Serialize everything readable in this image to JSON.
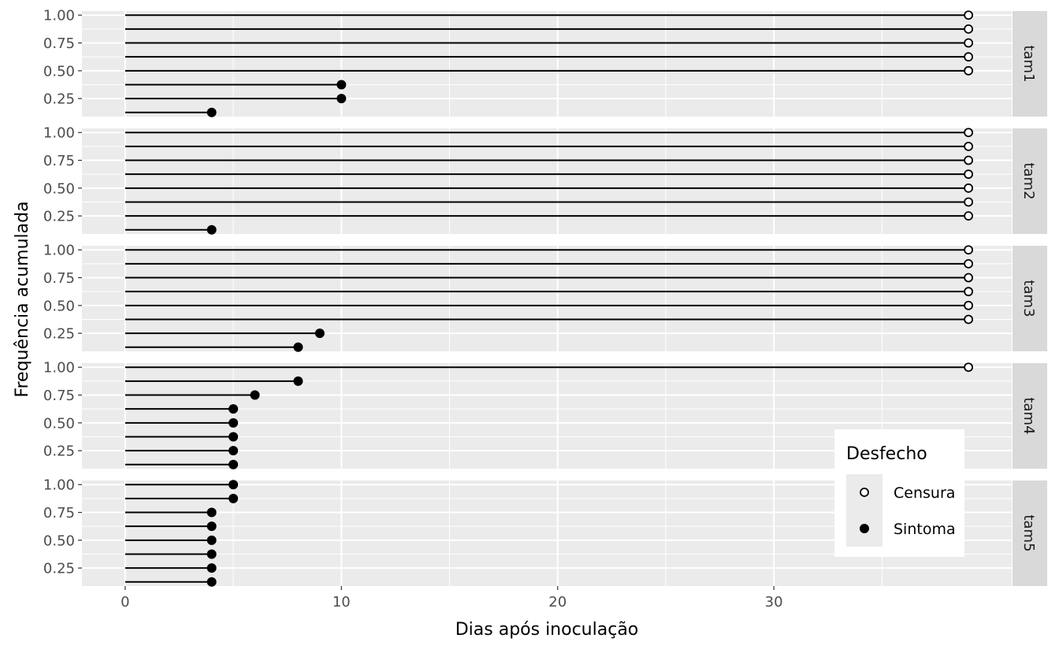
{
  "chart_data": {
    "type": "lollipop",
    "xlabel": "Dias após inoculação",
    "ylabel": "Frequência acumulada",
    "xlim": [
      -2,
      41
    ],
    "x_ticks": [
      0,
      10,
      20,
      30
    ],
    "y_ticks": [
      0.25,
      0.5,
      0.75,
      1.0
    ],
    "y_tick_labels": [
      "0.25",
      "0.50",
      "0.75",
      "1.00"
    ],
    "ylim": [
      0.088,
      1.037
    ],
    "facets": [
      {
        "label": "tam1",
        "points": [
          {
            "y": 1.0,
            "x": 39,
            "outcome": "Censura"
          },
          {
            "y": 0.875,
            "x": 39,
            "outcome": "Censura"
          },
          {
            "y": 0.75,
            "x": 39,
            "outcome": "Censura"
          },
          {
            "y": 0.625,
            "x": 39,
            "outcome": "Censura"
          },
          {
            "y": 0.5,
            "x": 39,
            "outcome": "Censura"
          },
          {
            "y": 0.375,
            "x": 10,
            "outcome": "Sintoma"
          },
          {
            "y": 0.25,
            "x": 10,
            "outcome": "Sintoma"
          },
          {
            "y": 0.125,
            "x": 4,
            "outcome": "Sintoma"
          }
        ]
      },
      {
        "label": "tam2",
        "points": [
          {
            "y": 1.0,
            "x": 39,
            "outcome": "Censura"
          },
          {
            "y": 0.875,
            "x": 39,
            "outcome": "Censura"
          },
          {
            "y": 0.75,
            "x": 39,
            "outcome": "Censura"
          },
          {
            "y": 0.625,
            "x": 39,
            "outcome": "Censura"
          },
          {
            "y": 0.5,
            "x": 39,
            "outcome": "Censura"
          },
          {
            "y": 0.375,
            "x": 39,
            "outcome": "Censura"
          },
          {
            "y": 0.25,
            "x": 39,
            "outcome": "Censura"
          },
          {
            "y": 0.125,
            "x": 4,
            "outcome": "Sintoma"
          }
        ]
      },
      {
        "label": "tam3",
        "points": [
          {
            "y": 1.0,
            "x": 39,
            "outcome": "Censura"
          },
          {
            "y": 0.875,
            "x": 39,
            "outcome": "Censura"
          },
          {
            "y": 0.75,
            "x": 39,
            "outcome": "Censura"
          },
          {
            "y": 0.625,
            "x": 39,
            "outcome": "Censura"
          },
          {
            "y": 0.5,
            "x": 39,
            "outcome": "Censura"
          },
          {
            "y": 0.375,
            "x": 39,
            "outcome": "Censura"
          },
          {
            "y": 0.25,
            "x": 9,
            "outcome": "Sintoma"
          },
          {
            "y": 0.125,
            "x": 8,
            "outcome": "Sintoma"
          }
        ]
      },
      {
        "label": "tam4",
        "points": [
          {
            "y": 1.0,
            "x": 39,
            "outcome": "Censura"
          },
          {
            "y": 0.875,
            "x": 8,
            "outcome": "Sintoma"
          },
          {
            "y": 0.75,
            "x": 6,
            "outcome": "Sintoma"
          },
          {
            "y": 0.625,
            "x": 5,
            "outcome": "Sintoma"
          },
          {
            "y": 0.5,
            "x": 5,
            "outcome": "Sintoma"
          },
          {
            "y": 0.375,
            "x": 5,
            "outcome": "Sintoma"
          },
          {
            "y": 0.25,
            "x": 5,
            "outcome": "Sintoma"
          },
          {
            "y": 0.125,
            "x": 5,
            "outcome": "Sintoma"
          }
        ]
      },
      {
        "label": "tam5",
        "points": [
          {
            "y": 1.0,
            "x": 5,
            "outcome": "Sintoma"
          },
          {
            "y": 0.875,
            "x": 5,
            "outcome": "Sintoma"
          },
          {
            "y": 0.75,
            "x": 4,
            "outcome": "Sintoma"
          },
          {
            "y": 0.625,
            "x": 4,
            "outcome": "Sintoma"
          },
          {
            "y": 0.5,
            "x": 4,
            "outcome": "Sintoma"
          },
          {
            "y": 0.375,
            "x": 4,
            "outcome": "Sintoma"
          },
          {
            "y": 0.25,
            "x": 4,
            "outcome": "Sintoma"
          },
          {
            "y": 0.125,
            "x": 4,
            "outcome": "Sintoma"
          }
        ]
      }
    ],
    "legend": {
      "title": "Desfecho",
      "position": "bottom-right",
      "items": [
        {
          "label": "Censura",
          "shape": "open-circle"
        },
        {
          "label": "Sintoma",
          "shape": "filled-circle"
        }
      ]
    },
    "colors": {
      "panel_background": "#ebebeb",
      "grid": "#ffffff",
      "strip_background": "#d9d9d9",
      "line": "#000000",
      "axis_text": "#4d4d4d"
    }
  }
}
